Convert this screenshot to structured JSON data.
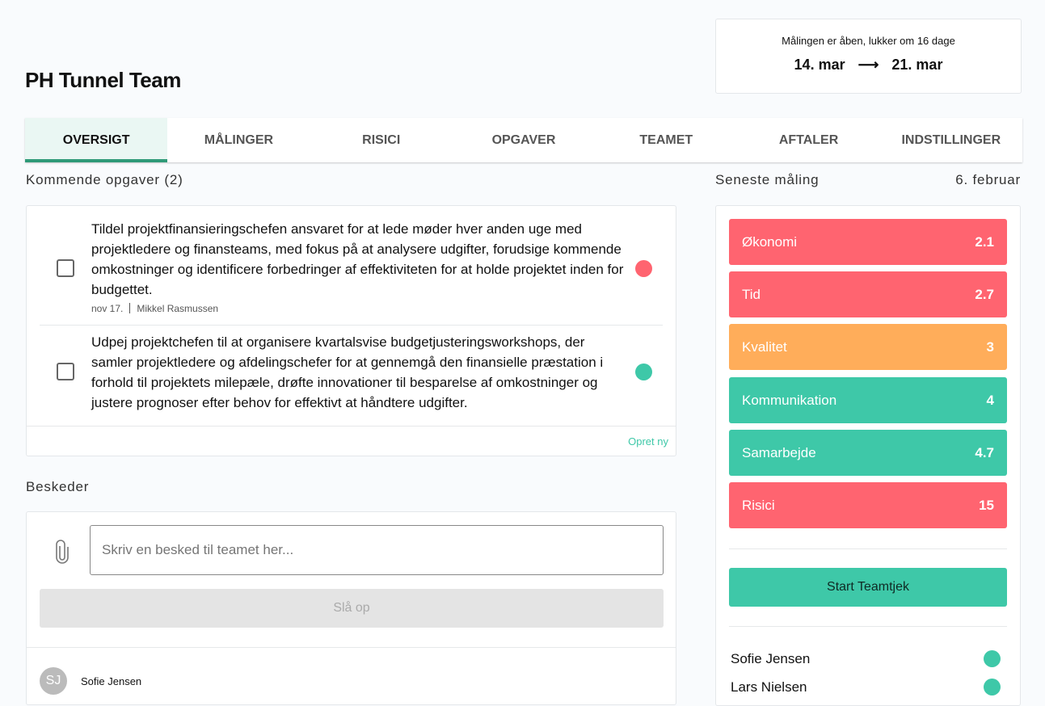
{
  "header": {
    "title": "PH Tunnel Team"
  },
  "measurement_status": {
    "text": "Målingen er åben, lukker om 16 dage",
    "start": "14. mar",
    "arrow": "⟶",
    "end": "21. mar"
  },
  "tabs": [
    {
      "label": "OVERSIGT",
      "active": true
    },
    {
      "label": "MÅLINGER"
    },
    {
      "label": "RISICI"
    },
    {
      "label": "OPGAVER"
    },
    {
      "label": "TEAMET"
    },
    {
      "label": "AFTALER"
    },
    {
      "label": "INDSTILLINGER"
    }
  ],
  "tasks": {
    "heading": "Kommende opgaver (2)",
    "items": [
      {
        "text": "Tildel projektfinansieringschefen ansvaret for at lede møder hver anden uge med projektledere og finansteams, med fokus på at analysere udgifter, forudsige kommende omkostninger og identificere forbedringer af effektiviteten for at holde projektet inden for budgettet.",
        "date": "nov 17.",
        "assignee": "Mikkel Rasmussen",
        "status_color": "#ff6470",
        "checked": false
      },
      {
        "text": "Udpej projektchefen til at organisere kvartalsvise budgetjusteringsworkshops, der samler projektledere og afdelingschefer for at gennemgå den finansielle præstation i forhold til projektets milepæle, drøfte innovationer til besparelse af omkostninger og justere prognoser efter behov for effektivt at håndtere udgifter.",
        "status_color": "#3ec8a8",
        "checked": false
      }
    ],
    "create_label": "Opret ny"
  },
  "messages": {
    "heading": "Beskeder",
    "input_placeholder": "Skriv en besked til teamet her...",
    "post_label": "Slå op",
    "items": [
      {
        "initials": "SJ",
        "author": "Sofie Jensen"
      }
    ]
  },
  "latest": {
    "heading": "Seneste måling",
    "date": "6. februar",
    "scores": [
      {
        "label": "Økonomi",
        "value": "2.1",
        "color": "#ff6470"
      },
      {
        "label": "Tid",
        "value": "2.7",
        "color": "#ff6470"
      },
      {
        "label": "Kvalitet",
        "value": "3",
        "color": "#ffad5a"
      },
      {
        "label": "Kommunikation",
        "value": "4",
        "color": "#3ec8a8"
      },
      {
        "label": "Samarbejde",
        "value": "4.7",
        "color": "#3ec8a8"
      },
      {
        "label": "Risici",
        "value": "15",
        "color": "#ff6470"
      }
    ],
    "start_label": "Start Teamtjek",
    "members": [
      {
        "name": "Sofie Jensen",
        "status_color": "#3ec8a8"
      },
      {
        "name": "Lars Nielsen",
        "status_color": "#3ec8a8"
      }
    ]
  }
}
